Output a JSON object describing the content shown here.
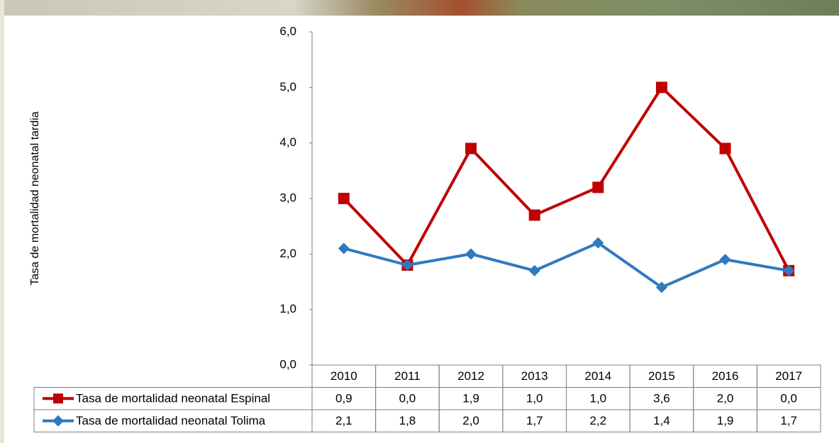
{
  "chart_data": {
    "type": "line",
    "y_label": "Tasa de mortalidad neonatal tardia",
    "categories": [
      "2010",
      "2011",
      "2012",
      "2013",
      "2014",
      "2015",
      "2016",
      "2017"
    ],
    "series": [
      {
        "name": "Tasa de mortalidad neonatal Espinal",
        "color": "#c00000",
        "marker": "square",
        "values": [
          3.0,
          1.8,
          3.9,
          2.7,
          3.2,
          5.0,
          3.9,
          1.7
        ]
      },
      {
        "name": "Tasa de mortalidad neonatal Tolima",
        "color": "#2e7ac0",
        "marker": "diamond",
        "values": [
          2.1,
          1.8,
          2.0,
          1.7,
          2.2,
          1.4,
          1.9,
          1.7
        ]
      }
    ],
    "data_table": [
      [
        "0,9",
        "0,0",
        "1,9",
        "1,0",
        "1,0",
        "3,6",
        "2,0",
        "0,0"
      ],
      [
        "2,1",
        "1,8",
        "2,0",
        "1,7",
        "2,2",
        "1,4",
        "1,9",
        "1,7"
      ]
    ],
    "ylim": [
      0,
      6
    ],
    "yticks": [
      {
        "value": 0,
        "label": "0,0"
      },
      {
        "value": 1,
        "label": "1,0"
      },
      {
        "value": 2,
        "label": "2,0"
      },
      {
        "value": 3,
        "label": "3,0"
      },
      {
        "value": 4,
        "label": "4,0"
      },
      {
        "value": 5,
        "label": "5,0"
      },
      {
        "value": 6,
        "label": "6,0"
      }
    ],
    "grid": false
  }
}
